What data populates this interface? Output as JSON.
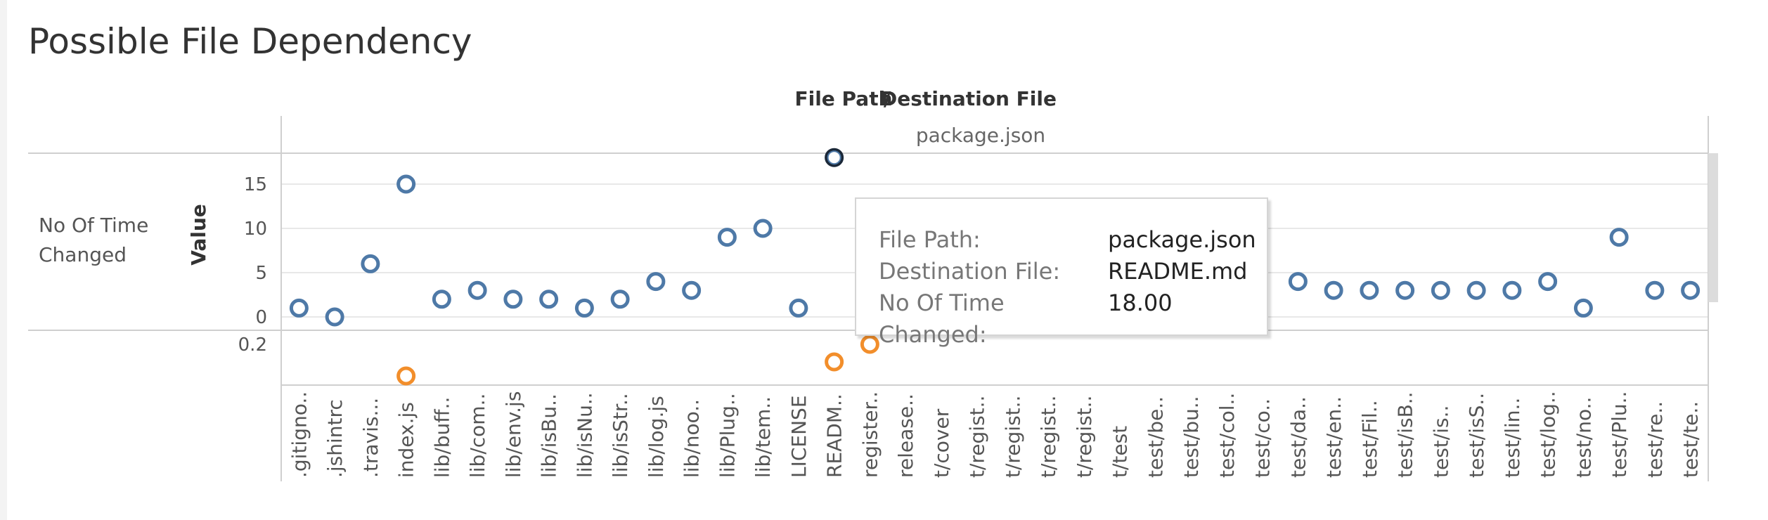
{
  "title": "Possible File Dependency",
  "header": {
    "top_label": "File Path",
    "separator": "/",
    "top_label2": "Destination File",
    "sub_label": "package.json"
  },
  "row_label_line1": "No Of Time",
  "row_label_line2": "Changed",
  "value_label": "Value",
  "colors": {
    "series_blue": "#4e79a7",
    "series_orange": "#f28e2b",
    "highlight_stroke": "#1b2838",
    "grid": "#e8e8e8",
    "divider": "#cfcfcf"
  },
  "tooltip": {
    "rows": [
      {
        "key": "File Path:",
        "value": "package.json"
      },
      {
        "key": "Destination File:",
        "value": "README.md"
      },
      {
        "key": "No Of Time Changed:",
        "value": "18.00"
      }
    ]
  },
  "chart_data": {
    "type": "scatter",
    "title": "Possible File Dependency",
    "xlabel": "",
    "ylabel": "Value",
    "categories": [
      ".gitigno..",
      ".jshintrc",
      ".travis...",
      "index.js",
      "lib/buff..",
      "lib/com..",
      "lib/env.js",
      "lib/isBu..",
      "lib/isNu..",
      "lib/isStr..",
      "lib/log.js",
      "lib/noo..",
      "lib/Plug..",
      "lib/tem..",
      "LICENSE",
      "READM..",
      "register..",
      "release..",
      "t/cover",
      "t/regist..",
      "t/regist..",
      "t/regist..",
      "t/regist..",
      "t/test",
      "test/be..",
      "test/bu..",
      "test/col..",
      "test/co..",
      "test/da..",
      "test/en..",
      "test/Fil..",
      "test/isB..",
      "test/is..",
      "test/isS..",
      "test/lin..",
      "test/log..",
      "test/no..",
      "test/Plu..",
      "test/re..",
      "test/te.."
    ],
    "panels": [
      {
        "name": "No Of Time Changed",
        "ticks": [
          0,
          5,
          10,
          15
        ],
        "ylim": [
          -1,
          20
        ],
        "series": [
          {
            "color": "#4e79a7",
            "values": [
              1,
              0,
              6,
              15,
              2,
              3,
              2,
              2,
              1,
              2,
              4,
              3,
              9,
              10,
              1,
              18,
              3,
              null,
              null,
              null,
              null,
              null,
              null,
              null,
              null,
              null,
              null,
              null,
              4,
              3,
              3,
              3,
              3,
              3,
              3,
              4,
              1,
              9,
              3,
              3
            ]
          }
        ]
      },
      {
        "name": "",
        "ticks": [
          0.2
        ],
        "ylim": [
          0.0,
          0.3
        ],
        "series": [
          {
            "color": "#f28e2b",
            "values": [
              null,
              null,
              null,
              0.02,
              null,
              null,
              null,
              null,
              null,
              null,
              null,
              null,
              null,
              null,
              null,
              0.1,
              0.2,
              null,
              null,
              null,
              null,
              null,
              null,
              null,
              null,
              null,
              null,
              null,
              null,
              null,
              null,
              null,
              null,
              null,
              null,
              null,
              null,
              null,
              null,
              null
            ]
          }
        ]
      }
    ],
    "highlighted": {
      "category_index": 15,
      "panel": 0
    }
  }
}
